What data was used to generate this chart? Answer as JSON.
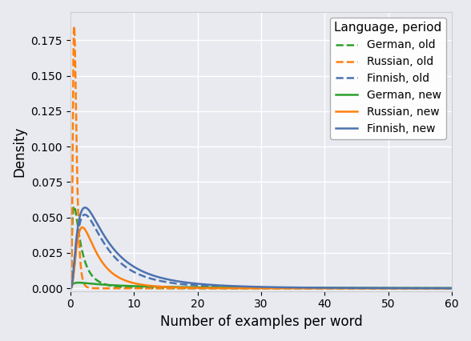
{
  "xlabel": "Number of examples per word",
  "ylabel": "Density",
  "legend_title": "Language, period",
  "xlim": [
    0,
    60
  ],
  "ylim": [
    -0.002,
    0.195
  ],
  "background_color": "#e8eaf0",
  "grid_color": "white",
  "xticks": [
    0,
    10,
    20,
    30,
    40,
    50,
    60
  ],
  "yticks": [
    0.0,
    0.025,
    0.05,
    0.075,
    0.1,
    0.125,
    0.15,
    0.175
  ],
  "curves": [
    {
      "key": "german_old",
      "label": "German, old",
      "color": "#2ca02c",
      "linestyle": "dashed",
      "type": "lognorm",
      "mu": 0.3,
      "sigma": 0.9,
      "scale": 0.058
    },
    {
      "key": "russian_old",
      "label": "Russian, old",
      "color": "#ff7f0e",
      "linestyle": "dashed",
      "type": "lognorm",
      "mu": -0.3,
      "sigma": 0.45,
      "scale": 0.185
    },
    {
      "key": "finnish_old",
      "label": "Finnish, old",
      "color": "#4c72b0",
      "linestyle": "dashed",
      "type": "lognorm",
      "mu": 1.55,
      "sigma": 0.85,
      "scale": 0.052
    },
    {
      "key": "german_new",
      "label": "German, new",
      "color": "#2ca02c",
      "linestyle": "solid",
      "type": "lognorm",
      "mu": 2.5,
      "sigma": 1.5,
      "scale": 0.004
    },
    {
      "key": "russian_new",
      "label": "Russian, new",
      "color": "#ff7f0e",
      "linestyle": "solid",
      "type": "lognorm",
      "mu": 1.2,
      "sigma": 0.75,
      "scale": 0.043
    },
    {
      "key": "finnish_new",
      "label": "Finnish, new",
      "color": "#4c72b0",
      "linestyle": "solid",
      "type": "lognorm",
      "mu": 1.65,
      "sigma": 0.9,
      "scale": 0.057
    }
  ]
}
